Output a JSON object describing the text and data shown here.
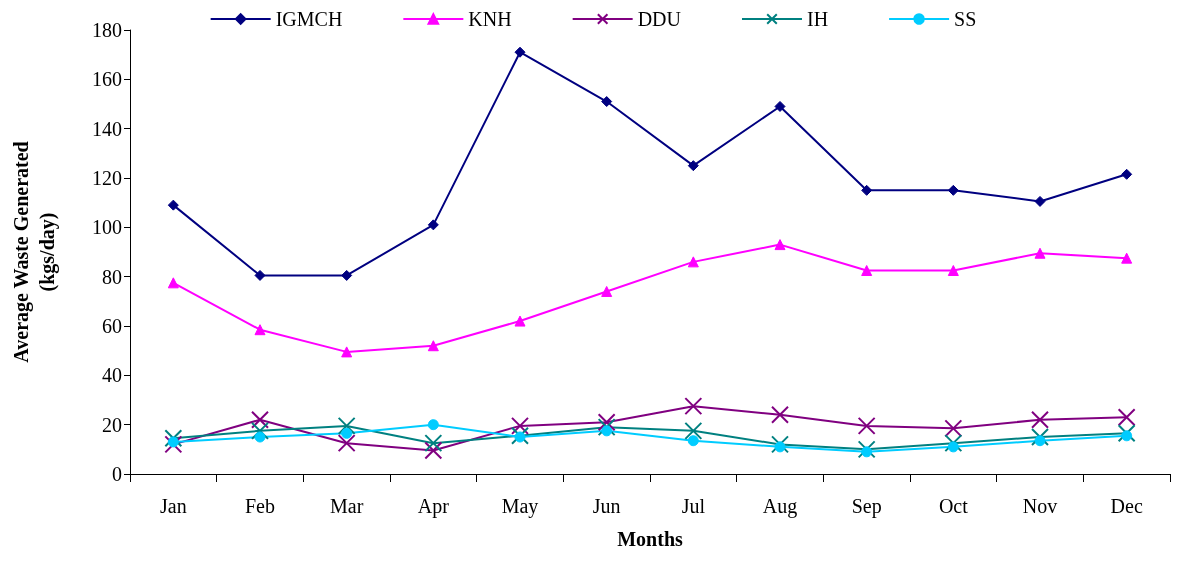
{
  "chart_data": {
    "type": "line",
    "xlabel": "Months",
    "ylabel": "Average Waste Generated\n(kgs/day)",
    "categories": [
      "Jan",
      "Feb",
      "Mar",
      "Apr",
      "May",
      "Jun",
      "Jul",
      "Aug",
      "Sep",
      "Oct",
      "Nov",
      "Dec"
    ],
    "ylim": [
      0,
      180
    ],
    "yticks": [
      0,
      20,
      40,
      60,
      80,
      100,
      120,
      140,
      160,
      180
    ],
    "grid": false,
    "legend": "top",
    "series": [
      {
        "name": "IGMCH",
        "color": "#000080",
        "marker": "diamond",
        "values": [
          109,
          80.5,
          80.5,
          101,
          171,
          151,
          125,
          149,
          115,
          115,
          110.5,
          121.5
        ]
      },
      {
        "name": "KNH",
        "color": "#ff00ff",
        "marker": "triangle",
        "values": [
          77.5,
          58.5,
          49.5,
          52,
          62,
          74,
          86,
          93,
          82.5,
          82.5,
          89.5,
          87.5
        ]
      },
      {
        "name": "DDU",
        "color": "#800080",
        "marker": "cross",
        "values": [
          12,
          22,
          12.5,
          9.5,
          19.5,
          21,
          27.5,
          24,
          19.5,
          18.5,
          22,
          23
        ]
      },
      {
        "name": "IH",
        "color": "#008080",
        "marker": "cross",
        "values": [
          14.5,
          17.5,
          19.5,
          12.5,
          15.5,
          19,
          17.5,
          12,
          10,
          12.5,
          15,
          16.5
        ]
      },
      {
        "name": "SS",
        "color": "#00ccff",
        "marker": "circle",
        "values": [
          13,
          15,
          16.5,
          20,
          15,
          17.5,
          13.5,
          11,
          9,
          11,
          13.5,
          15.5
        ]
      }
    ]
  }
}
